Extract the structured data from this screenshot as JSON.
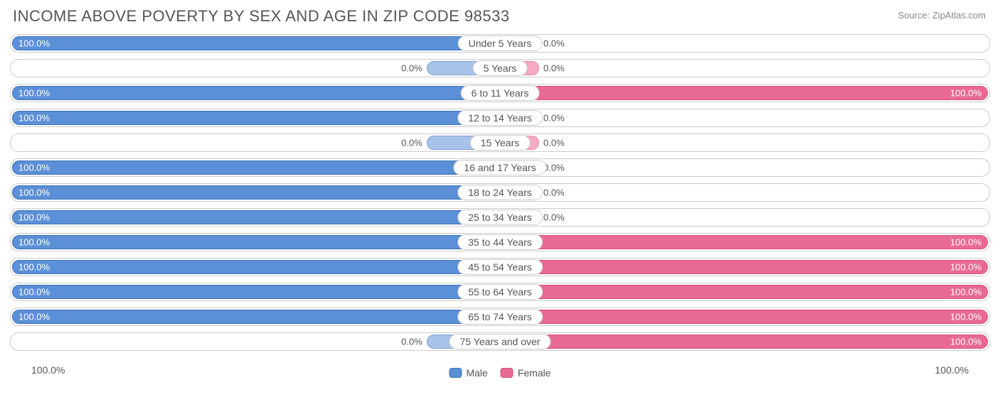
{
  "title": "INCOME ABOVE POVERTY BY SEX AND AGE IN ZIP CODE 98533",
  "source": "Source: ZipAtlas.com",
  "colors": {
    "male_fill": "#5b8fd6",
    "male_border": "#3e73bb",
    "male_light_fill": "#a9c3e8",
    "male_light_border": "#7ba0d6",
    "female_fill": "#e86a94",
    "female_border": "#d94e7e",
    "female_light_fill": "#f6aac4",
    "female_light_border": "#ef87aa",
    "text_on_bar": "#ffffff",
    "text_outside": "#555555",
    "row_border": "#cccccc"
  },
  "chart": {
    "type": "diverging-bar",
    "axis_left": "100.0%",
    "axis_right": "100.0%",
    "short_bar_pct": 15,
    "stub_bar_pct": 8,
    "legend": {
      "male": "Male",
      "female": "Female"
    },
    "rows": [
      {
        "age": "Under 5 Years",
        "male": 100.0,
        "female": 0.0,
        "male_label": "100.0%",
        "female_label": "0.0%"
      },
      {
        "age": "5 Years",
        "male": 0.0,
        "female": 0.0,
        "male_label": "0.0%",
        "female_label": "0.0%"
      },
      {
        "age": "6 to 11 Years",
        "male": 100.0,
        "female": 100.0,
        "male_label": "100.0%",
        "female_label": "100.0%"
      },
      {
        "age": "12 to 14 Years",
        "male": 100.0,
        "female": 0.0,
        "male_label": "100.0%",
        "female_label": "0.0%"
      },
      {
        "age": "15 Years",
        "male": 0.0,
        "female": 0.0,
        "male_label": "0.0%",
        "female_label": "0.0%"
      },
      {
        "age": "16 and 17 Years",
        "male": 100.0,
        "female": 0.0,
        "male_label": "100.0%",
        "female_label": "0.0%"
      },
      {
        "age": "18 to 24 Years",
        "male": 100.0,
        "female": 0.0,
        "male_label": "100.0%",
        "female_label": "0.0%"
      },
      {
        "age": "25 to 34 Years",
        "male": 100.0,
        "female": 0.0,
        "male_label": "100.0%",
        "female_label": "0.0%"
      },
      {
        "age": "35 to 44 Years",
        "male": 100.0,
        "female": 100.0,
        "male_label": "100.0%",
        "female_label": "100.0%"
      },
      {
        "age": "45 to 54 Years",
        "male": 100.0,
        "female": 100.0,
        "male_label": "100.0%",
        "female_label": "100.0%"
      },
      {
        "age": "55 to 64 Years",
        "male": 100.0,
        "female": 100.0,
        "male_label": "100.0%",
        "female_label": "100.0%"
      },
      {
        "age": "65 to 74 Years",
        "male": 100.0,
        "female": 100.0,
        "male_label": "100.0%",
        "female_label": "100.0%"
      },
      {
        "age": "75 Years and over",
        "male": 0.0,
        "female": 100.0,
        "male_label": "0.0%",
        "female_label": "100.0%"
      }
    ]
  }
}
